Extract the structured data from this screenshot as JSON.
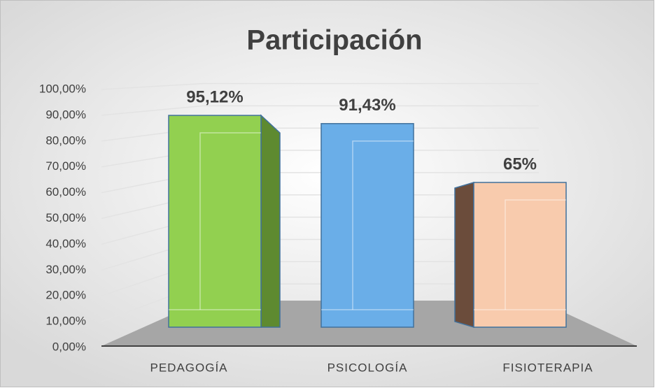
{
  "chart_data": {
    "type": "bar3d",
    "title": "Participación",
    "categories": [
      "PEDAGOGÍA",
      "PSICOLOGÍA",
      "FISIOTERAPIA"
    ],
    "values": [
      95.12,
      91.43,
      65
    ],
    "value_labels": [
      "95,12%",
      "91,43%",
      "65%"
    ],
    "colors": [
      "#92d050",
      "#6aaee8",
      "#f8cbad"
    ],
    "ylim": [
      0,
      100
    ],
    "yticks": [
      {
        "value": 0,
        "label": "0,00%"
      },
      {
        "value": 10,
        "label": "10,00%"
      },
      {
        "value": 20,
        "label": "20,00%"
      },
      {
        "value": 30,
        "label": "30,00%"
      },
      {
        "value": 40,
        "label": "40,00%"
      },
      {
        "value": 50,
        "label": "50,00%"
      },
      {
        "value": 60,
        "label": "60,00%"
      },
      {
        "value": 70,
        "label": "70,00%"
      },
      {
        "value": 80,
        "label": "80,00%"
      },
      {
        "value": 90,
        "label": "90,00%"
      },
      {
        "value": 100,
        "label": "100,00%"
      }
    ],
    "grid": true
  }
}
